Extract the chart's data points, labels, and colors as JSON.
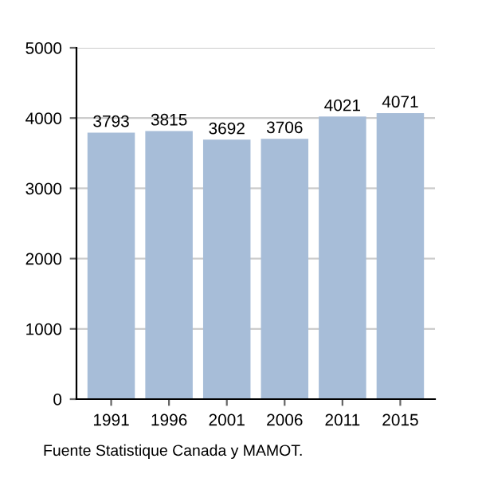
{
  "chart_data": {
    "type": "bar",
    "categories": [
      "1991",
      "1996",
      "2001",
      "2006",
      "2011",
      "2015"
    ],
    "values": [
      3793,
      3815,
      3692,
      3706,
      4021,
      4071
    ],
    "color": "#a7bdd8",
    "ylim": [
      0,
      5000
    ],
    "yticks": [
      0,
      1000,
      2000,
      3000,
      4000,
      5000
    ],
    "grid": "y",
    "data_labels": true,
    "annotations": [
      "Fuente Statistique Canada y MAMOT."
    ]
  }
}
